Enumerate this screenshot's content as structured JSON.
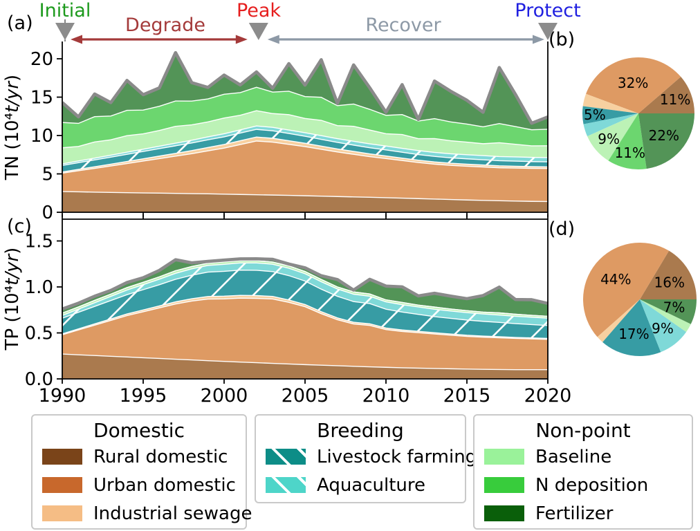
{
  "figure": {
    "panel_labels": {
      "a": "(a)",
      "b": "(b)",
      "c": "(c)",
      "d": "(d)"
    },
    "annotations": {
      "initial": {
        "text": "Initial",
        "color": "#1d9a1d",
        "year": 1990
      },
      "peak": {
        "text": "Peak",
        "color": "#e61e1e",
        "year": 2002
      },
      "protect": {
        "text": "Protect",
        "color": "#2020e0",
        "year": 2020
      },
      "degrade": {
        "text": "Degrade",
        "color": "#a43a3a"
      },
      "recover": {
        "text": "Recover",
        "color": "#8d99a6"
      },
      "marker_color": "#8c8c8c"
    },
    "panel_a_ylabel": {
      "prefix": "TN (10⁴",
      "units": "t/yr",
      "suffix": ")"
    },
    "panel_c_ylabel": {
      "prefix": "TP (10⁴",
      "units": "t/yr",
      "suffix": ")"
    }
  },
  "palette": {
    "rural": {
      "name": "Rural domestic",
      "legend": "#7a4419",
      "fill": "#aa7a4e",
      "hatch": false
    },
    "urban": {
      "name": "Urban domestic",
      "legend": "#c8682c",
      "fill": "#de9a63",
      "hatch": false
    },
    "industrial": {
      "name": "Industrial sewage",
      "legend": "#f5bd85",
      "fill": "#f7d0a0",
      "hatch": false
    },
    "livestock": {
      "name": "Livestock farming",
      "legend": "#0d8d87",
      "fill": "#379ca4",
      "hatch": true
    },
    "aquaculture": {
      "name": "Aquaculture",
      "legend": "#4ed5c9",
      "fill": "#7fd9d8",
      "hatch": true
    },
    "baseline": {
      "name": "Baseline",
      "legend": "#9af29a",
      "fill": "#bcf2b6",
      "hatch": false
    },
    "ndeposition": {
      "name": "N deposition",
      "legend": "#38cc3c",
      "fill": "#6cd66f",
      "hatch": false
    },
    "fertilizer": {
      "name": "Fertilizer",
      "legend": "#0a5f0a",
      "fill": "#539457",
      "hatch": false
    }
  },
  "chart_data": [
    {
      "id": "a",
      "type": "area",
      "stacked": true,
      "ylabel": "TN (10^4 t/yr)",
      "ylim": [
        0,
        22.2
      ],
      "grid": false,
      "outline_color": "#8a8a8a",
      "x": [
        1990,
        1991,
        1992,
        1993,
        1994,
        1995,
        1996,
        1997,
        1998,
        1999,
        2000,
        2001,
        2002,
        2003,
        2004,
        2005,
        2006,
        2007,
        2008,
        2009,
        2010,
        2011,
        2012,
        2013,
        2014,
        2015,
        2016,
        2017,
        2018,
        2019,
        2020
      ],
      "xticks": [
        {
          "v": 1990,
          "label": "1990"
        },
        {
          "v": 1995,
          "label": "1995"
        },
        {
          "v": 2000,
          "label": "2000"
        },
        {
          "v": 2005,
          "label": "2005"
        },
        {
          "v": 2010,
          "label": "2010"
        },
        {
          "v": 2015,
          "label": "2015"
        },
        {
          "v": 2020,
          "label": "2020"
        }
      ],
      "yticks": [
        {
          "v": 0,
          "label": "0"
        },
        {
          "v": 5,
          "label": "5"
        },
        {
          "v": 10,
          "label": "10"
        },
        {
          "v": 15,
          "label": "15"
        },
        {
          "v": 20,
          "label": "20"
        }
      ],
      "series": [
        {
          "key": "rural",
          "name": "Rural domestic",
          "values": [
            2.7,
            2.66,
            2.62,
            2.58,
            2.55,
            2.52,
            2.49,
            2.46,
            2.43,
            2.4,
            2.36,
            2.32,
            2.28,
            2.24,
            2.2,
            2.15,
            2.1,
            2.05,
            2.0,
            1.95,
            1.9,
            1.84,
            1.78,
            1.72,
            1.66,
            1.6,
            1.55,
            1.5,
            1.46,
            1.42,
            1.4
          ]
        },
        {
          "key": "urban",
          "name": "Urban domestic",
          "values": [
            2.4,
            2.75,
            3.1,
            3.45,
            3.8,
            4.15,
            4.5,
            4.85,
            5.2,
            5.6,
            6.0,
            6.5,
            7.0,
            6.9,
            6.65,
            6.4,
            6.1,
            5.8,
            5.55,
            5.3,
            5.1,
            4.9,
            4.7,
            4.55,
            4.45,
            4.4,
            4.35,
            4.3,
            4.3,
            4.3,
            4.3
          ]
        },
        {
          "key": "industrial",
          "name": "Industrial sewage",
          "values": [
            0.15,
            0.18,
            0.21,
            0.24,
            0.27,
            0.3,
            0.33,
            0.36,
            0.4,
            0.44,
            0.47,
            0.5,
            0.52,
            0.5,
            0.47,
            0.44,
            0.42,
            0.4,
            0.38,
            0.36,
            0.34,
            0.32,
            0.3,
            0.29,
            0.28,
            0.27,
            0.26,
            0.25,
            0.24,
            0.23,
            0.22
          ]
        },
        {
          "key": "livestock",
          "name": "Livestock farming",
          "values": [
            0.85,
            0.87,
            0.89,
            0.91,
            0.93,
            0.95,
            0.97,
            0.99,
            1.0,
            1.0,
            1.0,
            1.0,
            1.0,
            0.97,
            0.94,
            0.91,
            0.88,
            0.85,
            0.82,
            0.8,
            0.78,
            0.76,
            0.74,
            0.72,
            0.7,
            0.69,
            0.68,
            0.67,
            0.66,
            0.65,
            0.65
          ]
        },
        {
          "key": "aquaculture",
          "name": "Aquaculture",
          "values": [
            0.2,
            0.22,
            0.24,
            0.26,
            0.28,
            0.3,
            0.32,
            0.34,
            0.36,
            0.38,
            0.4,
            0.42,
            0.44,
            0.45,
            0.46,
            0.47,
            0.48,
            0.49,
            0.5,
            0.5,
            0.51,
            0.51,
            0.52,
            0.52,
            0.53,
            0.53,
            0.54,
            0.54,
            0.55,
            0.55,
            0.55
          ]
        },
        {
          "key": "baseline",
          "name": "Baseline",
          "values": [
            2.1,
            1.9,
            2.1,
            2.0,
            2.15,
            2.0,
            2.05,
            2.2,
            2.0,
            1.95,
            2.05,
            1.9,
            2.0,
            1.8,
            2.0,
            1.85,
            2.0,
            1.7,
            1.95,
            1.8,
            1.6,
            1.8,
            1.55,
            1.8,
            1.7,
            1.65,
            1.55,
            1.8,
            1.65,
            1.5,
            1.55
          ]
        },
        {
          "key": "ndeposition",
          "name": "N deposition",
          "values": [
            3.3,
            3.0,
            3.3,
            3.1,
            3.3,
            3.1,
            3.15,
            3.3,
            3.1,
            3.0,
            3.1,
            2.95,
            3.05,
            2.8,
            3.05,
            2.85,
            3.0,
            2.6,
            2.9,
            2.7,
            2.4,
            2.6,
            2.3,
            2.6,
            2.45,
            2.35,
            2.2,
            2.5,
            2.3,
            2.1,
            2.15
          ]
        },
        {
          "key": "fertilizer",
          "name": "Fertilizer",
          "values": [
            2.6,
            0.85,
            2.95,
            1.75,
            3.9,
            2.0,
            2.4,
            6.3,
            2.4,
            1.5,
            2.5,
            1.0,
            2.0,
            0.5,
            3.6,
            1.5,
            4.9,
            0.3,
            5.1,
            2.8,
            0.4,
            3.9,
            0.2,
            4.9,
            4.0,
            3.1,
            1.9,
            7.3,
            4.2,
            0.85,
            1.6
          ]
        }
      ]
    },
    {
      "id": "b",
      "type": "pie",
      "slices": [
        {
          "key": "rural",
          "name": "Rural domestic",
          "value": 11,
          "label": "11%",
          "label_r": 0.7
        },
        {
          "key": "urban",
          "name": "Urban domestic",
          "value": 32,
          "label": "32%",
          "label_r": 0.55
        },
        {
          "key": "industrial",
          "name": "Industrial sewage",
          "value": 3.5,
          "label": "",
          "label_r": 0
        },
        {
          "key": "livestock",
          "name": "Livestock farming",
          "value": 5,
          "label": "5%",
          "label_r": 0.78
        },
        {
          "key": "aquaculture",
          "name": "Aquaculture",
          "value": 3.5,
          "label": "",
          "label_r": 0
        },
        {
          "key": "baseline",
          "name": "Baseline",
          "value": 9,
          "label": "9%",
          "label_r": 0.7
        },
        {
          "key": "ndeposition",
          "name": "N deposition",
          "value": 11,
          "label": "11%",
          "label_r": 0.72
        },
        {
          "key": "fertilizer",
          "name": "Fertilizer",
          "value": 22,
          "label": "22%",
          "label_r": 0.6
        }
      ]
    },
    {
      "id": "c",
      "type": "area",
      "stacked": true,
      "ylabel": "TP (10^4 t/yr)",
      "ylim": [
        0,
        1.74
      ],
      "grid": false,
      "outline_color": "#8a8a8a",
      "x": [
        1990,
        1991,
        1992,
        1993,
        1994,
        1995,
        1996,
        1997,
        1998,
        1999,
        2000,
        2001,
        2002,
        2003,
        2004,
        2005,
        2006,
        2007,
        2008,
        2009,
        2010,
        2011,
        2012,
        2013,
        2014,
        2015,
        2016,
        2017,
        2018,
        2019,
        2020
      ],
      "xticks": [
        {
          "v": 1990,
          "label": "1990"
        },
        {
          "v": 1995,
          "label": "1995"
        },
        {
          "v": 2000,
          "label": "2000"
        },
        {
          "v": 2005,
          "label": "2005"
        },
        {
          "v": 2010,
          "label": "2010"
        },
        {
          "v": 2015,
          "label": "2015"
        },
        {
          "v": 2020,
          "label": "2020"
        }
      ],
      "yticks": [
        {
          "v": 0,
          "label": "0.0"
        },
        {
          "v": 0.5,
          "label": "0.5"
        },
        {
          "v": 1.0,
          "label": "1.0"
        },
        {
          "v": 1.5,
          "label": "1.5"
        }
      ],
      "series": [
        {
          "key": "rural",
          "name": "Rural domestic",
          "values": [
            0.27,
            0.262,
            0.254,
            0.246,
            0.238,
            0.23,
            0.222,
            0.214,
            0.206,
            0.198,
            0.19,
            0.183,
            0.176,
            0.169,
            0.162,
            0.155,
            0.149,
            0.143,
            0.137,
            0.131,
            0.126,
            0.121,
            0.117,
            0.113,
            0.11,
            0.107,
            0.104,
            0.102,
            0.1,
            0.1,
            0.1
          ]
        },
        {
          "key": "urban",
          "name": "Urban domestic",
          "values": [
            0.21,
            0.27,
            0.33,
            0.39,
            0.45,
            0.5,
            0.55,
            0.6,
            0.64,
            0.67,
            0.68,
            0.695,
            0.7,
            0.7,
            0.67,
            0.63,
            0.56,
            0.5,
            0.46,
            0.45,
            0.41,
            0.395,
            0.385,
            0.375,
            0.365,
            0.355,
            0.35,
            0.345,
            0.34,
            0.335,
            0.33
          ]
        },
        {
          "key": "industrial",
          "name": "Industrial sewage",
          "values": [
            0.01,
            0.012,
            0.014,
            0.016,
            0.018,
            0.02,
            0.022,
            0.024,
            0.026,
            0.028,
            0.03,
            0.03,
            0.03,
            0.028,
            0.026,
            0.024,
            0.022,
            0.02,
            0.019,
            0.018,
            0.017,
            0.016,
            0.015,
            0.014,
            0.013,
            0.013,
            0.012,
            0.012,
            0.011,
            0.011,
            0.01
          ]
        },
        {
          "key": "livestock",
          "name": "Livestock farming",
          "values": [
            0.17,
            0.18,
            0.19,
            0.2,
            0.21,
            0.22,
            0.23,
            0.245,
            0.255,
            0.265,
            0.27,
            0.275,
            0.275,
            0.27,
            0.265,
            0.255,
            0.245,
            0.235,
            0.225,
            0.22,
            0.205,
            0.195,
            0.185,
            0.175,
            0.17,
            0.165,
            0.16,
            0.155,
            0.15,
            0.145,
            0.14
          ]
        },
        {
          "key": "aquaculture",
          "name": "Aquaculture",
          "values": [
            0.03,
            0.035,
            0.04,
            0.045,
            0.05,
            0.055,
            0.06,
            0.065,
            0.07,
            0.073,
            0.076,
            0.078,
            0.08,
            0.08,
            0.08,
            0.08,
            0.08,
            0.08,
            0.08,
            0.08,
            0.08,
            0.08,
            0.08,
            0.08,
            0.08,
            0.08,
            0.08,
            0.08,
            0.08,
            0.08,
            0.08
          ]
        },
        {
          "key": "baseline",
          "name": "Baseline",
          "values": [
            0.025,
            0.024,
            0.026,
            0.025,
            0.027,
            0.025,
            0.026,
            0.028,
            0.025,
            0.024,
            0.026,
            0.024,
            0.025,
            0.023,
            0.026,
            0.024,
            0.026,
            0.022,
            0.025,
            0.024,
            0.021,
            0.024,
            0.02,
            0.024,
            0.022,
            0.022,
            0.02,
            0.024,
            0.022,
            0.02,
            0.021
          ]
        },
        {
          "key": "ndeposition",
          "name": "N deposition",
          "values": [
            0,
            0,
            0,
            0,
            0,
            0,
            0,
            0,
            0,
            0,
            0,
            0,
            0,
            0,
            0,
            0,
            0,
            0,
            0,
            0,
            0,
            0,
            0,
            0,
            0,
            0,
            0,
            0,
            0,
            0,
            0
          ]
        },
        {
          "key": "fertilizer",
          "name": "Fertilizer",
          "values": [
            0.045,
            0.04,
            0.045,
            0.04,
            0.055,
            0.05,
            0.07,
            0.12,
            0.04,
            0.02,
            0.02,
            0.02,
            0.02,
            0.03,
            0.02,
            0.04,
            0.04,
            0.08,
            0.02,
            0.16,
            0.15,
            0.17,
            0.1,
            0.15,
            0.14,
            0.13,
            0.18,
            0.28,
            0.16,
            0.17,
            0.14
          ]
        }
      ]
    },
    {
      "id": "d",
      "type": "pie",
      "slices": [
        {
          "key": "rural",
          "name": "Rural domestic",
          "value": 16,
          "label": "16%",
          "label_r": 0.6
        },
        {
          "key": "urban",
          "name": "Urban domestic",
          "value": 44,
          "label": "44%",
          "label_r": 0.55
        },
        {
          "key": "industrial",
          "name": "Industrial sewage",
          "value": 2,
          "label": "",
          "label_r": 0
        },
        {
          "key": "livestock",
          "name": "Livestock farming",
          "value": 17,
          "label": "17%",
          "label_r": 0.62
        },
        {
          "key": "aquaculture",
          "name": "Aquaculture",
          "value": 9,
          "label": "9%",
          "label_r": 0.65
        },
        {
          "key": "baseline",
          "name": "Baseline",
          "value": 2.5,
          "label": "",
          "label_r": 0
        },
        {
          "key": "ndeposition",
          "name": "N deposition",
          "value": 0,
          "label": "",
          "label_r": 0
        },
        {
          "key": "fertilizer",
          "name": "Fertilizer",
          "value": 7,
          "label": "7%",
          "label_r": 0.62
        }
      ]
    }
  ],
  "legend": {
    "groups": [
      {
        "title": "Domestic",
        "items": [
          {
            "key": "rural",
            "label": "Rural domestic"
          },
          {
            "key": "urban",
            "label": "Urban domestic"
          },
          {
            "key": "industrial",
            "label": "Industrial sewage"
          }
        ]
      },
      {
        "title": "Breeding",
        "items": [
          {
            "key": "livestock",
            "label": "Livestock farming"
          },
          {
            "key": "aquaculture",
            "label": "Aquaculture"
          }
        ]
      },
      {
        "title": "Non-point",
        "items": [
          {
            "key": "baseline",
            "label": "Baseline"
          },
          {
            "key": "ndeposition",
            "label": "N deposition"
          },
          {
            "key": "fertilizer",
            "label": "Fertilizer"
          }
        ]
      }
    ]
  }
}
